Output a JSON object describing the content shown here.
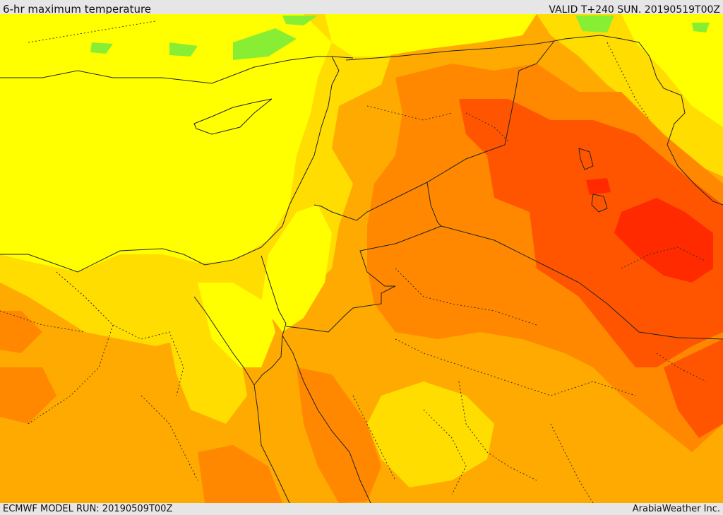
{
  "header": {
    "title": "6-hr maximum temperature",
    "valid": "VALID T+240 SUN. 20190519T00Z"
  },
  "footer": {
    "model_run": "ECMWF MODEL RUN: 20190509T00Z",
    "credit": "ArabiaWeather Inc."
  },
  "colors": {
    "band_1": "#ffff00",
    "band_2": "#ffdd00",
    "band_3": "#ffaa00",
    "band_4": "#ff8800",
    "band_5": "#ff5500",
    "band_6": "#ff2a00",
    "cool": "#88ee33",
    "border": "#222222"
  }
}
